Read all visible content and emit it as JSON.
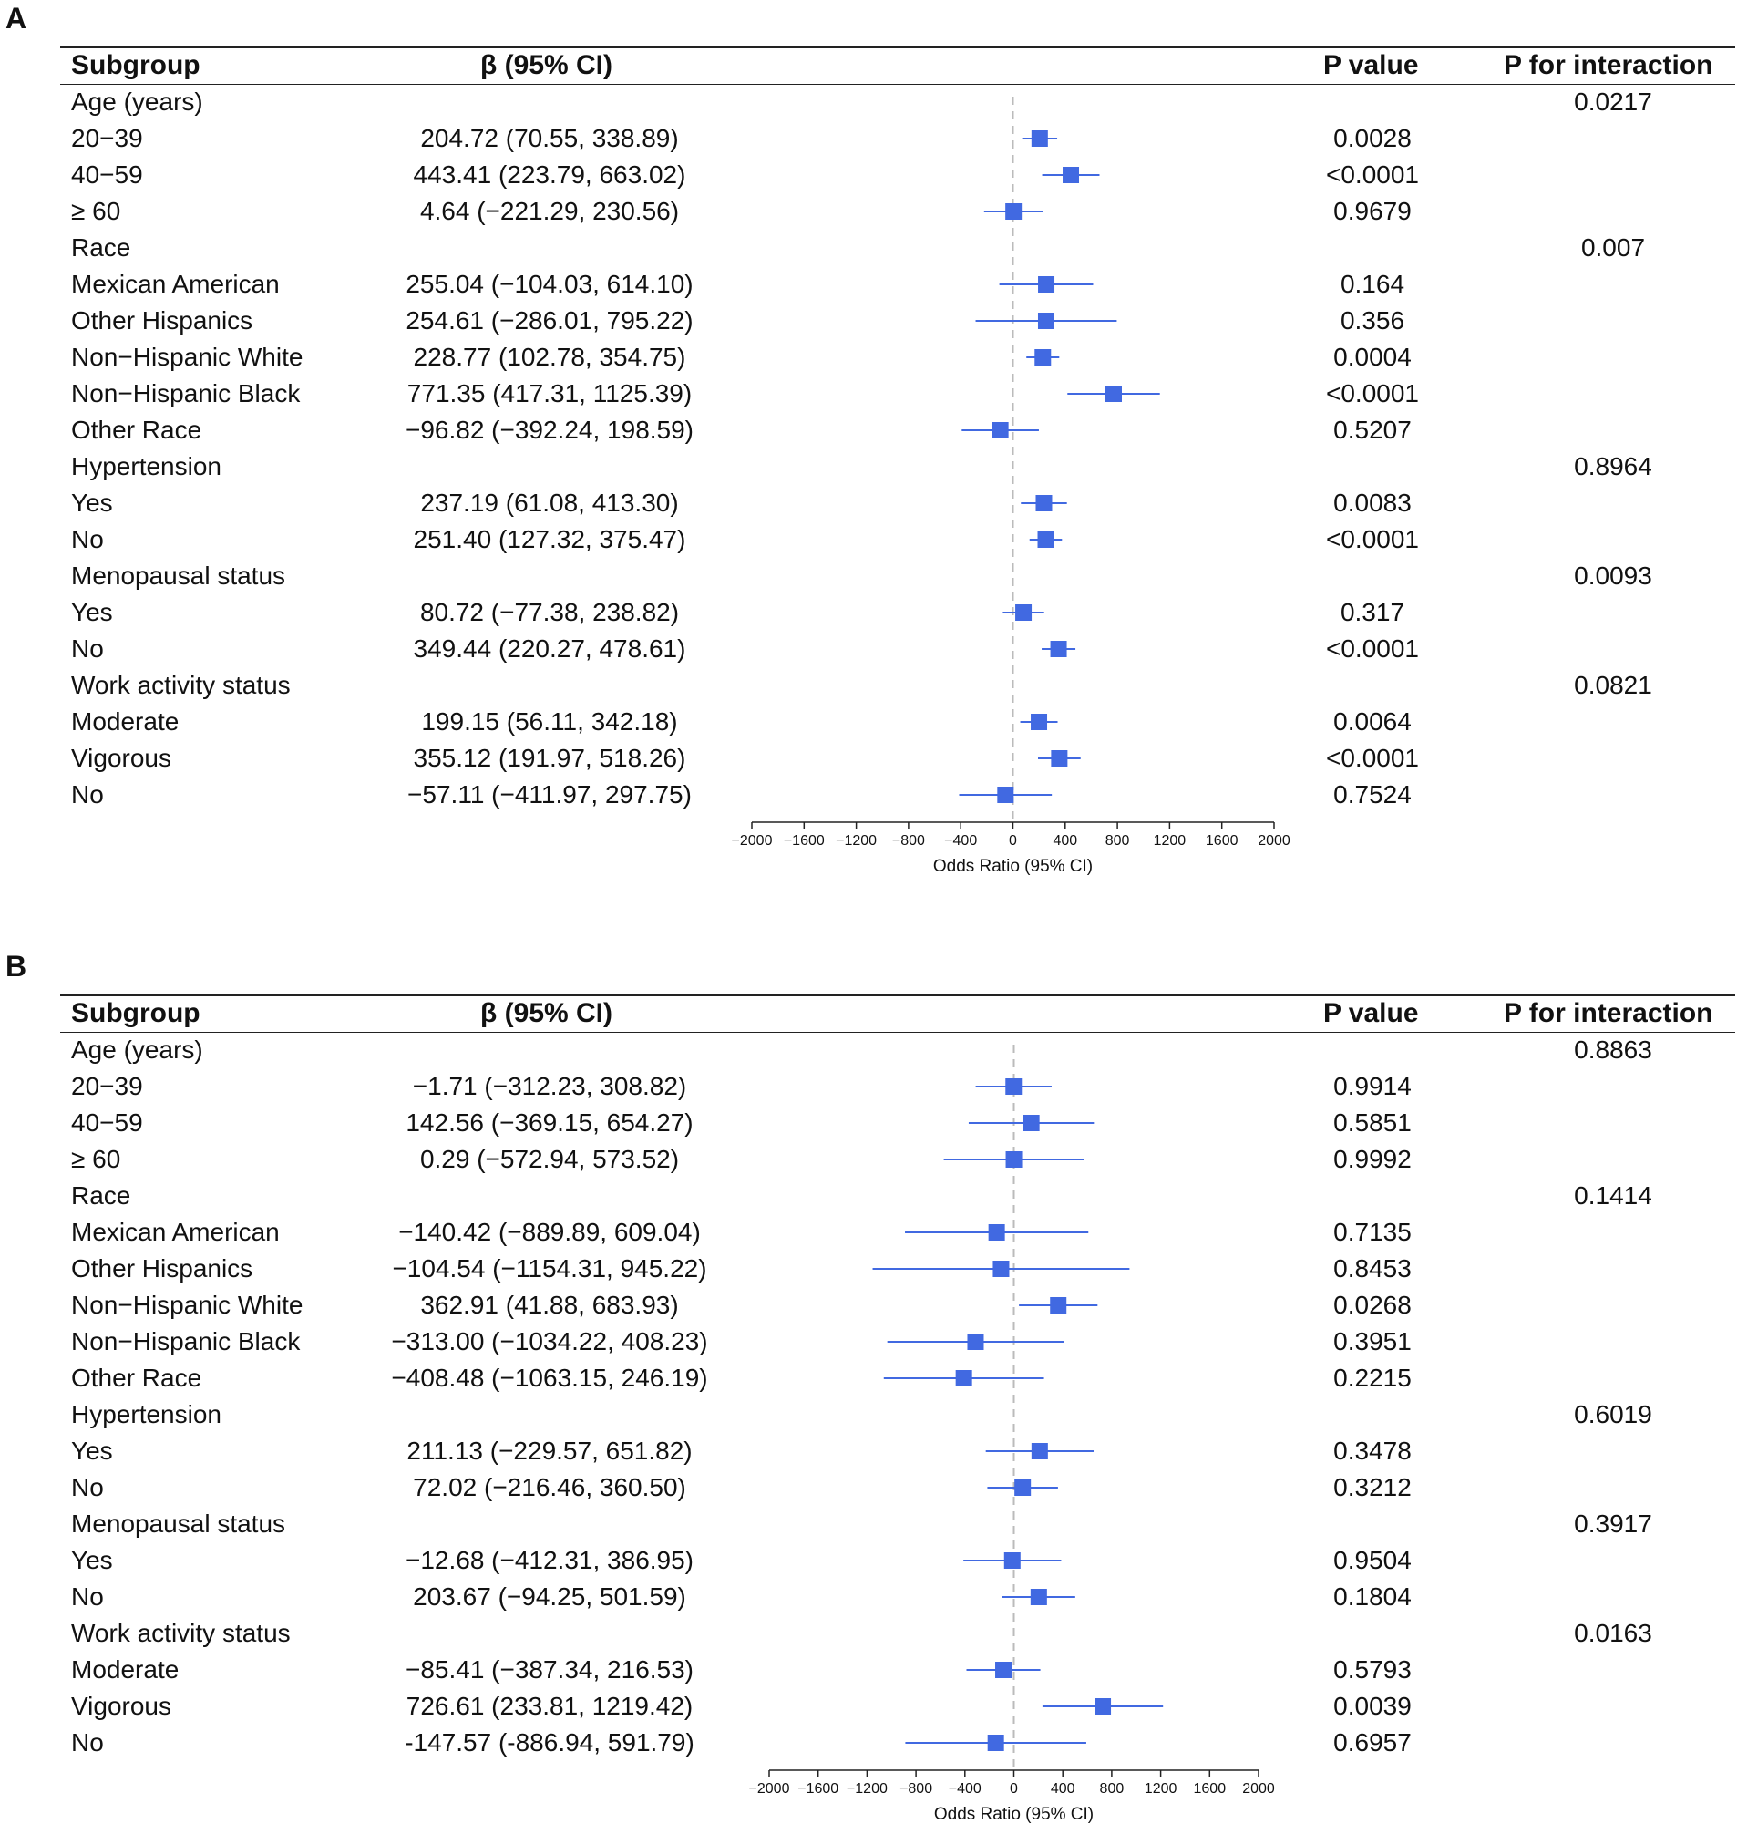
{
  "panels": [
    {
      "label": "A",
      "headers": {
        "subgroup": "Subgroup",
        "beta": "β (95% CI)",
        "p_value": "P value",
        "p_interaction": "P for interaction"
      },
      "rows": [
        {
          "subgroup": "Age (years)",
          "beta": "",
          "p": "",
          "p_int": "0.0217"
        },
        {
          "subgroup": "20−39",
          "beta": "204.72 (70.55, 338.89)",
          "p": "0.0028",
          "p_int": ""
        },
        {
          "subgroup": "40−59",
          "beta": "443.41 (223.79, 663.02)",
          "p": "<0.0001",
          "p_int": ""
        },
        {
          "subgroup": "≥ 60",
          "beta": "4.64 (−221.29, 230.56)",
          "p": "0.9679",
          "p_int": ""
        },
        {
          "subgroup": "Race",
          "beta": "",
          "p": "",
          "p_int": "0.007"
        },
        {
          "subgroup": "Mexican American",
          "beta": "255.04 (−104.03, 614.10)",
          "p": "0.164",
          "p_int": ""
        },
        {
          "subgroup": "Other Hispanics",
          "beta": "254.61 (−286.01, 795.22)",
          "p": "0.356",
          "p_int": ""
        },
        {
          "subgroup": "Non−Hispanic White",
          "beta": "228.77 (102.78, 354.75)",
          "p": "0.0004",
          "p_int": ""
        },
        {
          "subgroup": "Non−Hispanic Black",
          "beta": "771.35 (417.31, 1125.39)",
          "p": "<0.0001",
          "p_int": ""
        },
        {
          "subgroup": "Other Race",
          "beta": "−96.82 (−392.24, 198.59)",
          "p": "0.5207",
          "p_int": ""
        },
        {
          "subgroup": "Hypertension",
          "beta": "",
          "p": "",
          "p_int": "0.8964"
        },
        {
          "subgroup": "Yes",
          "beta": "237.19 (61.08, 413.30)",
          "p": "0.0083",
          "p_int": ""
        },
        {
          "subgroup": "No",
          "beta": "251.40 (127.32, 375.47)",
          "p": "<0.0001",
          "p_int": ""
        },
        {
          "subgroup": "Menopausal status",
          "beta": "",
          "p": "",
          "p_int": "0.0093"
        },
        {
          "subgroup": "Yes",
          "beta": "80.72 (−77.38, 238.82)",
          "p": "0.317",
          "p_int": ""
        },
        {
          "subgroup": "No",
          "beta": "349.44 (220.27, 478.61)",
          "p": "<0.0001",
          "p_int": ""
        },
        {
          "subgroup": "Work activity status",
          "beta": "",
          "p": "",
          "p_int": "0.0821"
        },
        {
          "subgroup": "Moderate",
          "beta": "199.15 (56.11, 342.18)",
          "p": "0.0064",
          "p_int": ""
        },
        {
          "subgroup": "Vigorous",
          "beta": "355.12 (191.97, 518.26)",
          "p": "<0.0001",
          "p_int": ""
        },
        {
          "subgroup": "No",
          "beta": "−57.11 (−411.97, 297.75)",
          "p": "0.7524",
          "p_int": ""
        }
      ]
    },
    {
      "label": "B",
      "headers": {
        "subgroup": "Subgroup",
        "beta": "β (95% CI)",
        "p_value": "P value",
        "p_interaction": "P for interaction"
      },
      "rows": [
        {
          "subgroup": "Age (years)",
          "beta": "",
          "p": "",
          "p_int": "0.8863"
        },
        {
          "subgroup": "20−39",
          "beta": "−1.71 (−312.23, 308.82)",
          "p": "0.9914",
          "p_int": ""
        },
        {
          "subgroup": "40−59",
          "beta": "142.56 (−369.15, 654.27)",
          "p": "0.5851",
          "p_int": ""
        },
        {
          "subgroup": "≥ 60",
          "beta": "0.29 (−572.94, 573.52)",
          "p": "0.9992",
          "p_int": ""
        },
        {
          "subgroup": "Race",
          "beta": "",
          "p": "",
          "p_int": "0.1414"
        },
        {
          "subgroup": "Mexican American",
          "beta": "−140.42 (−889.89, 609.04)",
          "p": "0.7135",
          "p_int": ""
        },
        {
          "subgroup": "Other Hispanics",
          "beta": "−104.54 (−1154.31, 945.22)",
          "p": "0.8453",
          "p_int": ""
        },
        {
          "subgroup": "Non−Hispanic White",
          "beta": "362.91 (41.88, 683.93)",
          "p": "0.0268",
          "p_int": ""
        },
        {
          "subgroup": "Non−Hispanic Black",
          "beta": "−313.00 (−1034.22, 408.23)",
          "p": "0.3951",
          "p_int": ""
        },
        {
          "subgroup": "Other Race",
          "beta": "−408.48 (−1063.15, 246.19)",
          "p": "0.2215",
          "p_int": ""
        },
        {
          "subgroup": "Hypertension",
          "beta": "",
          "p": "",
          "p_int": "0.6019"
        },
        {
          "subgroup": "Yes",
          "beta": "211.13 (−229.57, 651.82)",
          "p": "0.3478",
          "p_int": ""
        },
        {
          "subgroup": "No",
          "beta": "72.02 (−216.46, 360.50)",
          "p": "0.3212",
          "p_int": ""
        },
        {
          "subgroup": "Menopausal status",
          "beta": "",
          "p": "",
          "p_int": "0.3917"
        },
        {
          "subgroup": "Yes",
          "beta": "−12.68 (−412.31, 386.95)",
          "p": "0.9504",
          "p_int": ""
        },
        {
          "subgroup": "No",
          "beta": "203.67 (−94.25, 501.59)",
          "p": "0.1804",
          "p_int": ""
        },
        {
          "subgroup": "Work activity status",
          "beta": "",
          "p": "",
          "p_int": "0.0163"
        },
        {
          "subgroup": "Moderate",
          "beta": "−85.41 (−387.34, 216.53)",
          "p": "0.5793",
          "p_int": ""
        },
        {
          "subgroup": "Vigorous",
          "beta": "726.61 (233.81, 1219.42)",
          "p": "0.0039",
          "p_int": ""
        },
        {
          "subgroup": "No",
          "beta": "-147.57 (-886.94, 591.79)",
          "p": "0.6957",
          "p_int": ""
        }
      ]
    }
  ],
  "chart_data": [
    {
      "type": "forest",
      "panel": "A",
      "xlabel": "Odds Ratio (95% CI)",
      "xlim": [
        -2000,
        2000
      ],
      "xticks": [
        -2000,
        -1600,
        -1200,
        -800,
        -400,
        0,
        400,
        800,
        1200,
        1600,
        2000
      ],
      "tick_labels": [
        "−2000",
        "−1600",
        "−1200",
        "−800",
        "−400",
        "0",
        "400",
        "800",
        "1200",
        "1600",
        "2000"
      ],
      "reference_line": 0,
      "marker_color": "#4169E1",
      "estimates": [
        null,
        204.72,
        443.41,
        4.64,
        null,
        255.04,
        254.61,
        228.77,
        771.35,
        -96.82,
        null,
        237.19,
        251.4,
        null,
        80.72,
        349.44,
        null,
        199.15,
        355.12,
        -57.11
      ],
      "lower": [
        null,
        70.55,
        223.79,
        -221.29,
        null,
        -104.03,
        -286.01,
        102.78,
        417.31,
        -392.24,
        null,
        61.08,
        127.32,
        null,
        -77.38,
        220.27,
        null,
        56.11,
        191.97,
        -411.97
      ],
      "upper": [
        null,
        338.89,
        663.02,
        230.56,
        null,
        614.1,
        795.22,
        354.75,
        1125.39,
        198.59,
        null,
        413.3,
        375.47,
        null,
        238.82,
        478.61,
        null,
        342.18,
        518.26,
        297.75
      ]
    },
    {
      "type": "forest",
      "panel": "B",
      "xlabel": "Odds Ratio (95% CI)",
      "xlim": [
        -2000,
        2000
      ],
      "xticks": [
        -2000,
        -1600,
        -1200,
        -800,
        -400,
        0,
        400,
        800,
        1200,
        1600,
        2000
      ],
      "tick_labels": [
        "−2000",
        "−1600",
        "−1200",
        "−800",
        "−400",
        "0",
        "400",
        "800",
        "1200",
        "1600",
        "2000"
      ],
      "reference_line": 0,
      "marker_color": "#4169E1",
      "estimates": [
        null,
        -1.71,
        142.56,
        0.29,
        null,
        -140.42,
        -104.54,
        362.91,
        -313.0,
        -408.48,
        null,
        211.13,
        72.02,
        null,
        -12.68,
        203.67,
        null,
        -85.41,
        726.61,
        -147.57
      ],
      "lower": [
        null,
        -312.23,
        -369.15,
        -572.94,
        null,
        -889.89,
        -1154.31,
        41.88,
        -1034.22,
        -1063.15,
        null,
        -229.57,
        -216.46,
        null,
        -412.31,
        -94.25,
        null,
        -387.34,
        233.81,
        -886.94
      ],
      "upper": [
        null,
        308.82,
        654.27,
        573.52,
        null,
        609.04,
        945.22,
        683.93,
        408.23,
        246.19,
        null,
        651.82,
        360.5,
        null,
        386.95,
        501.59,
        null,
        216.53,
        1219.42,
        591.79
      ]
    }
  ]
}
